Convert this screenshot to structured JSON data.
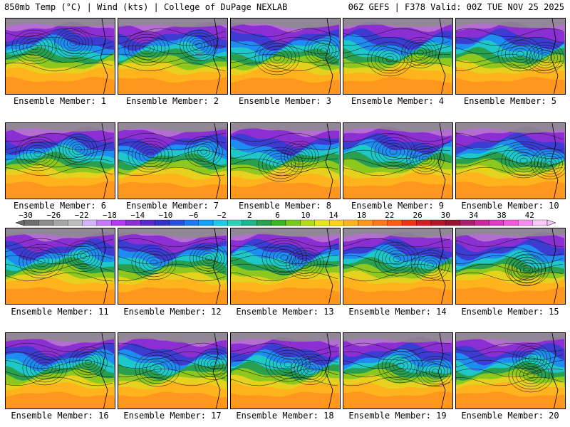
{
  "header": {
    "left": "850mb Temp (°C) | Wind (kts) | College of DuPage NEXLAB",
    "right": "06Z GEFS | F378 Valid: 00Z TUE NOV 25 2025"
  },
  "members": [
    {
      "label": "Ensemble Member: 1"
    },
    {
      "label": "Ensemble Member: 2"
    },
    {
      "label": "Ensemble Member: 3"
    },
    {
      "label": "Ensemble Member: 4"
    },
    {
      "label": "Ensemble Member: 5"
    },
    {
      "label": "Ensemble Member: 6"
    },
    {
      "label": "Ensemble Member: 7"
    },
    {
      "label": "Ensemble Member: 8"
    },
    {
      "label": "Ensemble Member: 9"
    },
    {
      "label": "Ensemble Member: 10"
    },
    {
      "label": "Ensemble Member: 11"
    },
    {
      "label": "Ensemble Member: 12"
    },
    {
      "label": "Ensemble Member: 13"
    },
    {
      "label": "Ensemble Member: 14"
    },
    {
      "label": "Ensemble Member: 15"
    },
    {
      "label": "Ensemble Member: 16"
    },
    {
      "label": "Ensemble Member: 17"
    },
    {
      "label": "Ensemble Member: 18"
    },
    {
      "label": "Ensemble Member: 19"
    },
    {
      "label": "Ensemble Member: 20"
    }
  ],
  "legend": {
    "tick_labels": [
      "−30",
      "−26",
      "−22",
      "−18",
      "−14",
      "−10",
      "−6",
      "−2",
      "2",
      "6",
      "10",
      "14",
      "18",
      "22",
      "26",
      "30",
      "34",
      "38",
      "42"
    ],
    "colors": [
      "#6e6e6e",
      "#8c8c8c",
      "#a6a6a6",
      "#bebebe",
      "#d2b4ff",
      "#c878ff",
      "#b43cf0",
      "#8c2fd2",
      "#5a28c8",
      "#3232c8",
      "#2850dc",
      "#1e78f0",
      "#14a0f5",
      "#1ec8e6",
      "#28d2b4",
      "#1eb48c",
      "#28a050",
      "#3cb428",
      "#78c81e",
      "#b4dc14",
      "#e6e61e",
      "#ffd21e",
      "#ffb41e",
      "#ff961e",
      "#ff781e",
      "#ff5a14",
      "#f03214",
      "#d21e1e",
      "#b41428",
      "#961432",
      "#aa1e6e",
      "#c8289b",
      "#dc3cc8",
      "#f05adc",
      "#f78cf0",
      "#fbc8f8"
    ]
  }
}
